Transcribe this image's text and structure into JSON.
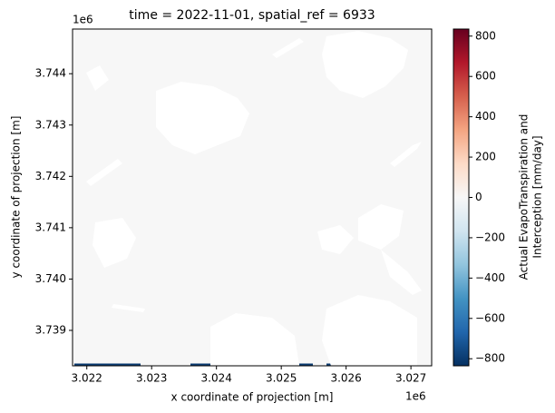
{
  "chart_data": {
    "type": "image",
    "title": "time = 2022-11-01, spatial_ref = 6933",
    "x_label": "x coordinate of projection [m]",
    "y_label": "y coordinate of projection [m]",
    "x_offset": "1e6",
    "y_offset": "1e6",
    "xlim": [
      3021780,
      3027320
    ],
    "ylim": [
      3738310,
      3744870
    ],
    "xticks": [
      {
        "value": 3022000,
        "label": "3.022"
      },
      {
        "value": 3023000,
        "label": "3.023"
      },
      {
        "value": 3024000,
        "label": "3.024"
      },
      {
        "value": 3025000,
        "label": "3.025"
      },
      {
        "value": 3026000,
        "label": "3.026"
      },
      {
        "value": 3027000,
        "label": "3.027"
      }
    ],
    "yticks": [
      {
        "value": 3739000,
        "label": "3.739"
      },
      {
        "value": 3740000,
        "label": "3.740"
      },
      {
        "value": 3741000,
        "label": "3.741"
      },
      {
        "value": 3742000,
        "label": "3.742"
      },
      {
        "value": 3743000,
        "label": "3.743"
      },
      {
        "value": 3744000,
        "label": "3.744"
      }
    ],
    "field_value": 0,
    "edge_value": -800,
    "colorbar": {
      "label": [
        "Actual EvapoTranspiration and",
        "Interception [mm/day]"
      ],
      "lim": [
        -835,
        835
      ],
      "ticks": [
        {
          "value": -800,
          "label": "−800"
        },
        {
          "value": -600,
          "label": "−600"
        },
        {
          "value": -400,
          "label": "−400"
        },
        {
          "value": -200,
          "label": "−200"
        },
        0,
        200,
        400,
        600,
        800
      ],
      "colors": [
        "#053061",
        "#2166ac",
        "#4393c3",
        "#92c5de",
        "#d1e5f0",
        "#f7f7f7",
        "#fddbc7",
        "#f4a582",
        "#d6604d",
        "#b2182b",
        "#67001f"
      ]
    }
  }
}
